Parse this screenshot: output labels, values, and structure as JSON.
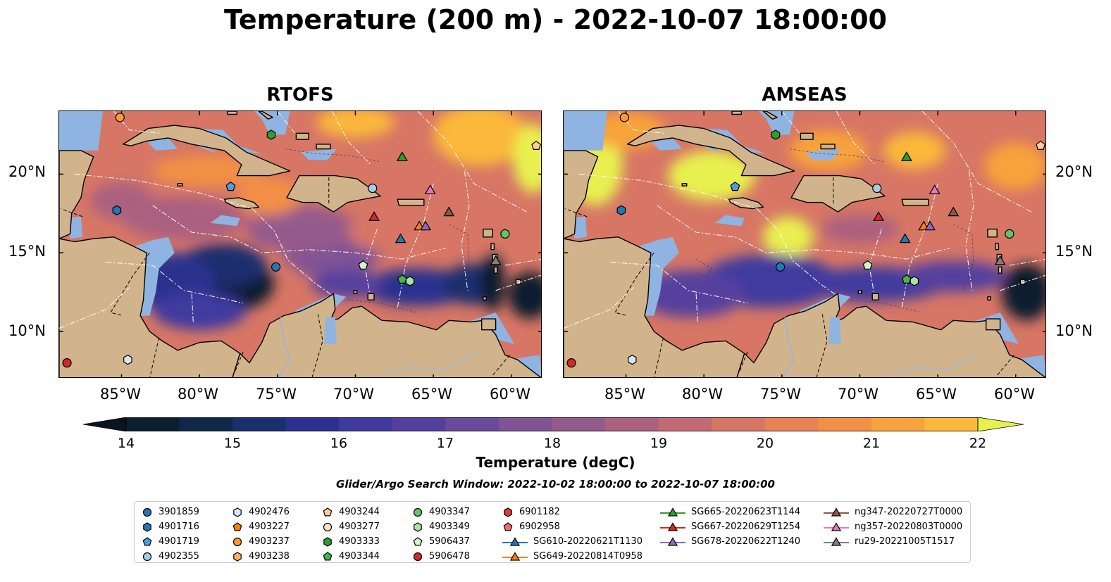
{
  "title": "Temperature (200 m) - 2022-10-07 18:00:00",
  "panels": [
    {
      "title": "RTOFS",
      "variant": "rtofs"
    },
    {
      "title": "AMSEAS",
      "variant": "amseas"
    }
  ],
  "axes": {
    "lon_range": [
      -89,
      -58
    ],
    "lat_range": [
      7,
      24
    ],
    "x_ticks": [
      -85,
      -80,
      -75,
      -70,
      -65,
      -60
    ],
    "x_tick_labels": [
      "85°W",
      "80°W",
      "75°W",
      "70°W",
      "65°W",
      "60°W"
    ],
    "y_ticks": [
      10,
      15,
      20
    ],
    "y_tick_labels": [
      "10°N",
      "15°N",
      "20°N"
    ]
  },
  "colorbar": {
    "label": "Temperature (degC)",
    "min": 14,
    "max": 22,
    "step": 0.5,
    "tick_values": [
      14,
      15,
      16,
      17,
      18,
      19,
      20,
      21,
      22
    ],
    "tick_labels": [
      "14",
      "15",
      "16",
      "17",
      "18",
      "19",
      "20",
      "21",
      "22"
    ],
    "colors": [
      "#0b1f2e",
      "#0f2848",
      "#1a2f6e",
      "#2c318f",
      "#3f3a9f",
      "#543f9e",
      "#6a4a9a",
      "#7f5394",
      "#955a8c",
      "#ab6080",
      "#c26a73",
      "#d77665",
      "#e88357",
      "#f39045",
      "#f8a23b",
      "#fbb83a",
      "#f3d547"
    ],
    "under_color": "#08141f",
    "over_color": "#e8f050"
  },
  "colors": {
    "land": "#d2b48c",
    "shelf": "#8fb4e2",
    "ocean_mid": "#f39045"
  },
  "search_window": "Glider/Argo Search Window: 2022-10-02 18:00:00 to 2022-10-07 18:00:00",
  "legend": [
    [
      {
        "label": "3901859",
        "marker": "circle",
        "color": "#2277b4"
      },
      {
        "label": "4901716",
        "marker": "hexagon",
        "color": "#2277b4"
      },
      {
        "label": "4901719",
        "marker": "pentagon",
        "color": "#4a9fd9"
      },
      {
        "label": "4902355",
        "marker": "circle",
        "color": "#a6cee3"
      }
    ],
    [
      {
        "label": "4902476",
        "marker": "hexagon",
        "color": "#d6e6f5"
      },
      {
        "label": "4903227",
        "marker": "pentagon",
        "color": "#ff7f0e"
      },
      {
        "label": "4903237",
        "marker": "circle",
        "color": "#ff9933"
      },
      {
        "label": "4903238",
        "marker": "hexagon",
        "color": "#ffb366"
      }
    ],
    [
      {
        "label": "4903244",
        "marker": "pentagon",
        "color": "#ffcc99"
      },
      {
        "label": "4903277",
        "marker": "circle",
        "color": "#ffe0c2"
      },
      {
        "label": "4903333",
        "marker": "hexagon",
        "color": "#2ca02c"
      },
      {
        "label": "4903344",
        "marker": "pentagon",
        "color": "#44b844"
      }
    ],
    [
      {
        "label": "4903347",
        "marker": "circle",
        "color": "#66c266"
      },
      {
        "label": "4903349",
        "marker": "hexagon",
        "color": "#a8e6a0"
      },
      {
        "label": "5906437",
        "marker": "pentagon",
        "color": "#d4f5cc"
      },
      {
        "label": "5906478",
        "marker": "circle",
        "color": "#d62728"
      }
    ],
    [
      {
        "label": "6901182",
        "marker": "hexagon",
        "color": "#e0393a"
      },
      {
        "label": "6902958",
        "marker": "pentagon",
        "color": "#ec7070"
      },
      {
        "label": "SG610-20220621T1130",
        "marker": "triangle-line",
        "color": "#1f77b4"
      },
      {
        "label": "SG649-20220814T0958",
        "marker": "triangle-line",
        "color": "#ff7f0e"
      }
    ],
    [
      {
        "label": "SG665-20220623T1144",
        "marker": "triangle-line",
        "color": "#2ca02c"
      },
      {
        "label": "SG667-20220629T1254",
        "marker": "triangle-line",
        "color": "#d62728"
      },
      {
        "label": "SG678-20220622T1240",
        "marker": "triangle-line",
        "color": "#9467bd"
      }
    ],
    [
      {
        "label": "ng347-20220727T0000",
        "marker": "triangle-line",
        "color": "#8c564b"
      },
      {
        "label": "ng357-20220803T0000",
        "marker": "triangle-line",
        "color": "#e377c2"
      },
      {
        "label": "ru29-20221005T1517",
        "marker": "triangle-line",
        "color": "#7f7f7f"
      }
    ]
  ],
  "platforms": [
    {
      "id": "3901859",
      "lon": -75.1,
      "lat": 14.1,
      "marker": "circle",
      "color": "#2277b4"
    },
    {
      "id": "4901716",
      "lon": -85.3,
      "lat": 17.7,
      "marker": "hexagon",
      "color": "#2277b4"
    },
    {
      "id": "4901719",
      "lon": -78.0,
      "lat": 19.2,
      "marker": "pentagon",
      "color": "#4a9fd9"
    },
    {
      "id": "4902355",
      "lon": -68.9,
      "lat": 19.1,
      "marker": "circle",
      "color": "#a6cee3"
    },
    {
      "id": "4902476",
      "lon": -84.6,
      "lat": 8.2,
      "marker": "hexagon",
      "color": "#d6e6f5"
    },
    {
      "id": "4903237",
      "lon": -85.1,
      "lat": 23.6,
      "marker": "circle",
      "color": "#ff9933"
    },
    {
      "id": "4903244",
      "lon": -58.4,
      "lat": 21.8,
      "marker": "pentagon",
      "color": "#ffcc99"
    },
    {
      "id": "4903333",
      "lon": -75.4,
      "lat": 22.5,
      "marker": "hexagon",
      "color": "#2ca02c"
    },
    {
      "id": "4903344",
      "lon": -67.0,
      "lat": 13.3,
      "marker": "pentagon",
      "color": "#44b844"
    },
    {
      "id": "4903347",
      "lon": -60.4,
      "lat": 16.2,
      "marker": "circle",
      "color": "#66c266"
    },
    {
      "id": "4903349",
      "lon": -66.5,
      "lat": 13.2,
      "marker": "hexagon",
      "color": "#a8e6a0"
    },
    {
      "id": "5906437",
      "lon": -69.5,
      "lat": 14.2,
      "marker": "pentagon",
      "color": "#d4f5cc"
    },
    {
      "id": "5906478",
      "lon": -88.5,
      "lat": 8.0,
      "marker": "circle",
      "color": "#d62728"
    },
    {
      "id": "SG610-20220621T1130",
      "lon": -67.1,
      "lat": 15.9,
      "marker": "triangle",
      "color": "#1f77b4"
    },
    {
      "id": "SG649-20220814T0958",
      "lon": -65.9,
      "lat": 16.7,
      "marker": "triangle",
      "color": "#ff7f0e"
    },
    {
      "id": "SG665-20220623T1144",
      "lon": -67.0,
      "lat": 21.1,
      "marker": "triangle",
      "color": "#2ca02c"
    },
    {
      "id": "SG667-20220629T1254",
      "lon": -68.8,
      "lat": 17.3,
      "marker": "triangle",
      "color": "#d62728"
    },
    {
      "id": "SG678-20220622T1240",
      "lon": -65.5,
      "lat": 16.7,
      "marker": "triangle",
      "color": "#9467bd"
    },
    {
      "id": "ng347-20220727T0000",
      "lon": -64.0,
      "lat": 17.6,
      "marker": "triangle",
      "color": "#8c564b"
    },
    {
      "id": "ng357-20220803T0000",
      "lon": -65.2,
      "lat": 19.0,
      "marker": "triangle",
      "color": "#e377c2"
    },
    {
      "id": "ru29-20221005T1517",
      "lon": -61.0,
      "lat": 14.5,
      "marker": "triangle",
      "color": "#7f7f7f"
    }
  ]
}
